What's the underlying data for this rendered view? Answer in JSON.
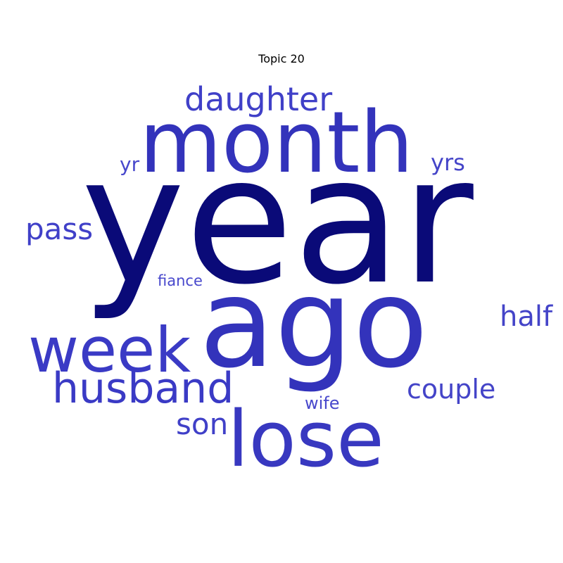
{
  "chart_data": {
    "type": "wordcloud",
    "title": "Topic 20",
    "words": [
      {
        "text": "year",
        "weight": 1.0,
        "color": "#0a0a78"
      },
      {
        "text": "ago",
        "weight": 0.72,
        "color": "#3333bb"
      },
      {
        "text": "month",
        "weight": 0.55,
        "color": "#3333bb"
      },
      {
        "text": "lose",
        "weight": 0.5,
        "color": "#3838c0"
      },
      {
        "text": "week",
        "weight": 0.42,
        "color": "#3a3ac5"
      },
      {
        "text": "husband",
        "weight": 0.3,
        "color": "#3a3ac5"
      },
      {
        "text": "daughter",
        "weight": 0.24,
        "color": "#4040c8"
      },
      {
        "text": "pass",
        "weight": 0.2,
        "color": "#4040c8"
      },
      {
        "text": "son",
        "weight": 0.2,
        "color": "#4040c8"
      },
      {
        "text": "half",
        "weight": 0.17,
        "color": "#4444c8"
      },
      {
        "text": "couple",
        "weight": 0.16,
        "color": "#4444c8"
      },
      {
        "text": "yrs",
        "weight": 0.14,
        "color": "#4444c8"
      },
      {
        "text": "yr",
        "weight": 0.12,
        "color": "#4848cc"
      },
      {
        "text": "wife",
        "weight": 0.11,
        "color": "#4848cc"
      },
      {
        "text": "fiance",
        "weight": 0.09,
        "color": "#4848cc"
      }
    ]
  }
}
